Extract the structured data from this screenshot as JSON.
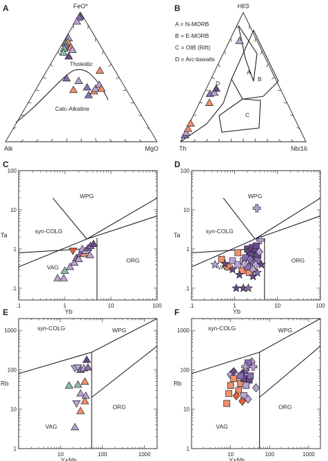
{
  "colors": {
    "dark_purple": "#6a4a8c",
    "purple": "#8a6fb0",
    "lavender": "#b9a3d4",
    "salmon": "#ef8f6e",
    "orange_red": "#e5603a",
    "teal": "#8cbcae",
    "outline": "#231f20"
  },
  "chart_data": [
    {
      "panel": "A",
      "type": "scatter",
      "subtype": "ternary",
      "apices": {
        "top": "FeO*",
        "left": "Alk",
        "right": "MgO"
      },
      "fields": [
        "Tholeiitic",
        "Calc-Alkaline"
      ],
      "points": [
        {
          "a": 0.97,
          "b": 0.02,
          "c": 0.01,
          "marker": "triangle",
          "color": "purple"
        },
        {
          "a": 0.96,
          "b": 0.03,
          "c": 0.01,
          "marker": "triangle",
          "color": "purple"
        },
        {
          "a": 0.93,
          "b": 0.06,
          "c": 0.01,
          "marker": "triangle",
          "color": "lavender"
        },
        {
          "a": 0.8,
          "b": 0.18,
          "c": 0.02,
          "marker": "triangle",
          "color": "lavender"
        },
        {
          "a": 0.77,
          "b": 0.2,
          "c": 0.03,
          "marker": "triangle",
          "color": "salmon"
        },
        {
          "a": 0.76,
          "b": 0.22,
          "c": 0.02,
          "marker": "triangle",
          "color": "teal"
        },
        {
          "a": 0.74,
          "b": 0.23,
          "c": 0.03,
          "marker": "triangle",
          "color": "purple"
        },
        {
          "a": 0.72,
          "b": 0.25,
          "c": 0.03,
          "marker": "triangle",
          "color": "teal"
        },
        {
          "a": 0.73,
          "b": 0.2,
          "c": 0.07,
          "marker": "triangle",
          "color": "salmon"
        },
        {
          "a": 0.71,
          "b": 0.2,
          "c": 0.09,
          "marker": "triangle",
          "color": "lavender"
        },
        {
          "a": 0.69,
          "b": 0.27,
          "c": 0.04,
          "marker": "triangle",
          "color": "teal"
        },
        {
          "a": 0.66,
          "b": 0.25,
          "c": 0.09,
          "marker": "triangle",
          "color": "dark_purple"
        },
        {
          "a": 0.49,
          "b": 0.35,
          "c": 0.16,
          "marker": "triangle",
          "color": "purple"
        },
        {
          "a": 0.47,
          "b": 0.28,
          "c": 0.25,
          "marker": "triangle",
          "color": "lavender"
        },
        {
          "a": 0.4,
          "b": 0.35,
          "c": 0.25,
          "marker": "triangle",
          "color": "salmon"
        },
        {
          "a": 0.42,
          "b": 0.25,
          "c": 0.33,
          "marker": "triangle",
          "color": "purple"
        },
        {
          "a": 0.36,
          "b": 0.27,
          "c": 0.37,
          "marker": "triangle",
          "color": "purple"
        },
        {
          "a": 0.39,
          "b": 0.22,
          "c": 0.39,
          "marker": "triangle",
          "color": "salmon"
        },
        {
          "a": 0.41,
          "b": 0.2,
          "c": 0.39,
          "marker": "triangle",
          "color": "lavender"
        },
        {
          "a": 0.44,
          "b": 0.16,
          "c": 0.4,
          "marker": "triangle",
          "color": "lavender"
        },
        {
          "a": 0.41,
          "b": 0.16,
          "c": 0.43,
          "marker": "triangle",
          "color": "salmon"
        },
        {
          "a": 0.55,
          "b": 0.1,
          "c": 0.35,
          "marker": "triangle",
          "color": "salmon"
        }
      ]
    },
    {
      "panel": "B",
      "type": "scatter",
      "subtype": "ternary",
      "apices": {
        "top": "Hf/3",
        "left": "Th",
        "right": "Nb/16"
      },
      "legend": [
        "A = N-MORB",
        "B = E-MORB",
        "C = OIB (Rift)",
        "D = Arc-basalts"
      ],
      "fields": [
        "A",
        "B",
        "C",
        "D"
      ],
      "points": [
        {
          "a": 0.05,
          "b": 0.94,
          "c": 0.01,
          "marker": "triangle",
          "color": "purple"
        },
        {
          "a": 0.07,
          "b": 0.92,
          "c": 0.01,
          "marker": "triangle",
          "color": "lavender"
        },
        {
          "a": 0.1,
          "b": 0.89,
          "c": 0.01,
          "marker": "triangle",
          "color": "salmon"
        },
        {
          "a": 0.14,
          "b": 0.85,
          "c": 0.01,
          "marker": "triangle",
          "color": "salmon"
        },
        {
          "a": 0.3,
          "b": 0.62,
          "c": 0.08,
          "marker": "triangle",
          "color": "salmon"
        },
        {
          "a": 0.37,
          "b": 0.58,
          "c": 0.05,
          "marker": "triangle",
          "color": "purple"
        },
        {
          "a": 0.38,
          "b": 0.54,
          "c": 0.08,
          "marker": "triangle",
          "color": "lavender"
        },
        {
          "a": 0.41,
          "b": 0.51,
          "c": 0.08,
          "marker": "triangle",
          "color": "dark_purple"
        },
        {
          "a": 0.78,
          "b": 0.14,
          "c": 0.08,
          "marker": "triangle",
          "color": "lavender"
        }
      ]
    },
    {
      "panel": "C",
      "type": "scatter",
      "xlabel": "Yb",
      "ylabel": "Ta",
      "xscale": "log",
      "yscale": "log",
      "xlim": [
        0.1,
        100
      ],
      "ylim": [
        0.05,
        100
      ],
      "xticks": [
        ".1",
        "1",
        "10",
        "100"
      ],
      "yticks": [
        ".1",
        "1",
        "10",
        "100"
      ],
      "fields": [
        "WPG",
        "syn-COLG",
        "VAG",
        "ORG"
      ],
      "points": [
        {
          "x": 0.7,
          "y": 0.18,
          "marker": "triangle",
          "color": "lavender"
        },
        {
          "x": 0.95,
          "y": 0.18,
          "marker": "triangle",
          "color": "lavender"
        },
        {
          "x": 1.0,
          "y": 0.28,
          "marker": "triangle",
          "color": "teal"
        },
        {
          "x": 1.3,
          "y": 0.35,
          "marker": "triangle",
          "color": "lavender"
        },
        {
          "x": 1.6,
          "y": 0.45,
          "marker": "triangle",
          "color": "lavender"
        },
        {
          "x": 1.8,
          "y": 0.6,
          "marker": "triangle",
          "color": "purple"
        },
        {
          "x": 2.0,
          "y": 0.55,
          "marker": "triangle",
          "color": "lavender"
        },
        {
          "x": 1.5,
          "y": 0.9,
          "marker": "down-triangle",
          "color": "orange_red"
        },
        {
          "x": 2.2,
          "y": 0.75,
          "marker": "triangle",
          "color": "purple"
        },
        {
          "x": 2.4,
          "y": 1.0,
          "marker": "triangle",
          "color": "lavender"
        },
        {
          "x": 2.6,
          "y": 0.75,
          "marker": "triangle",
          "color": "salmon"
        },
        {
          "x": 2.8,
          "y": 0.9,
          "marker": "triangle",
          "color": "lavender"
        },
        {
          "x": 3.2,
          "y": 1.05,
          "marker": "triangle",
          "color": "purple"
        },
        {
          "x": 3.5,
          "y": 0.7,
          "marker": "triangle",
          "color": "lavender"
        },
        {
          "x": 3.6,
          "y": 1.2,
          "marker": "triangle",
          "color": "purple"
        },
        {
          "x": 4.2,
          "y": 1.35,
          "marker": "triangle",
          "color": "dark_purple"
        }
      ]
    },
    {
      "panel": "D",
      "type": "scatter",
      "xlabel": "Yb",
      "ylabel": "Ta",
      "xscale": "log",
      "yscale": "log",
      "xlim": [
        0.1,
        100
      ],
      "ylim": [
        0.05,
        100
      ],
      "xticks": [
        ".1",
        "1",
        "10",
        "100"
      ],
      "yticks": [
        ".1",
        "1",
        "10",
        "100"
      ],
      "fields": [
        "WPG",
        "syn-COLG",
        "VAG",
        "ORG"
      ],
      "points": [
        {
          "x": 3.3,
          "y": 11.0,
          "marker": "cross",
          "color": "lavender"
        },
        {
          "x": 4.0,
          "y": 1.7,
          "marker": "cross",
          "color": "lavender"
        },
        {
          "x": 1.2,
          "y": 0.8,
          "marker": "square",
          "color": "salmon"
        },
        {
          "x": 0.5,
          "y": 0.55,
          "marker": "square",
          "color": "salmon"
        },
        {
          "x": 0.7,
          "y": 0.35,
          "marker": "square",
          "color": "salmon"
        },
        {
          "x": 1.5,
          "y": 0.28,
          "marker": "square",
          "color": "salmon"
        },
        {
          "x": 2.2,
          "y": 0.25,
          "marker": "square",
          "color": "salmon"
        },
        {
          "x": 0.9,
          "y": 0.5,
          "marker": "square",
          "color": "lavender"
        },
        {
          "x": 1.2,
          "y": 0.4,
          "marker": "square",
          "color": "lavender"
        },
        {
          "x": 1.6,
          "y": 0.5,
          "marker": "square",
          "color": "lavender"
        },
        {
          "x": 2.0,
          "y": 1.0,
          "marker": "square",
          "color": "dark_purple"
        },
        {
          "x": 2.2,
          "y": 0.85,
          "marker": "square",
          "color": "dark_purple"
        },
        {
          "x": 2.6,
          "y": 1.1,
          "marker": "square",
          "color": "dark_purple"
        },
        {
          "x": 3.0,
          "y": 0.9,
          "marker": "square",
          "color": "dark_purple"
        },
        {
          "x": 2.4,
          "y": 0.7,
          "marker": "square",
          "color": "dark_purple"
        },
        {
          "x": 3.2,
          "y": 1.2,
          "marker": "square",
          "color": "dark_purple"
        },
        {
          "x": 2.8,
          "y": 0.55,
          "marker": "square",
          "color": "dark_purple"
        },
        {
          "x": 3.5,
          "y": 0.7,
          "marker": "square",
          "color": "dark_purple"
        },
        {
          "x": 1.8,
          "y": 0.6,
          "marker": "square",
          "color": "purple"
        },
        {
          "x": 2.5,
          "y": 0.45,
          "marker": "square",
          "color": "purple"
        },
        {
          "x": 3.4,
          "y": 0.5,
          "marker": "square",
          "color": "purple"
        },
        {
          "x": 2.0,
          "y": 0.35,
          "marker": "square",
          "color": "purple"
        },
        {
          "x": 2.7,
          "y": 0.3,
          "marker": "diamond",
          "color": "lavender"
        },
        {
          "x": 3.1,
          "y": 0.4,
          "marker": "diamond",
          "color": "lavender"
        },
        {
          "x": 1.7,
          "y": 0.42,
          "marker": "diamond",
          "color": "lavender"
        },
        {
          "x": 3.8,
          "y": 0.85,
          "marker": "diamond",
          "color": "lavender"
        },
        {
          "x": 2.3,
          "y": 0.55,
          "marker": "diamond",
          "color": "purple"
        },
        {
          "x": 0.35,
          "y": 0.4,
          "marker": "star",
          "color": "lavender"
        },
        {
          "x": 0.6,
          "y": 0.42,
          "marker": "star",
          "color": "dark_purple"
        },
        {
          "x": 0.9,
          "y": 0.3,
          "marker": "star",
          "color": "dark_purple"
        },
        {
          "x": 1.3,
          "y": 0.22,
          "marker": "star",
          "color": "dark_purple"
        },
        {
          "x": 1.1,
          "y": 0.1,
          "marker": "star",
          "color": "dark_purple"
        },
        {
          "x": 1.6,
          "y": 0.1,
          "marker": "star",
          "color": "dark_purple"
        },
        {
          "x": 2.1,
          "y": 0.1,
          "marker": "star",
          "color": "purple"
        },
        {
          "x": 2.7,
          "y": 0.2,
          "marker": "star",
          "color": "dark_purple"
        },
        {
          "x": 3.4,
          "y": 0.25,
          "marker": "star",
          "color": "purple"
        },
        {
          "x": 4.2,
          "y": 0.4,
          "marker": "star",
          "color": "dark_purple"
        }
      ]
    },
    {
      "panel": "E",
      "type": "scatter",
      "xlabel": "Y+Nb",
      "ylabel": "Rb",
      "xscale": "log",
      "yscale": "log",
      "xlim": [
        1,
        2000
      ],
      "ylim": [
        1,
        2000
      ],
      "xticks": [
        "10",
        "100",
        "1000"
      ],
      "yticks": [
        "1",
        "10",
        "100",
        "1000"
      ],
      "fields": [
        "syn-COLG",
        "WPG",
        "VAG",
        "ORG"
      ],
      "points": [
        {
          "x": 22,
          "y": 110,
          "marker": "down-triangle",
          "color": "lavender"
        },
        {
          "x": 26,
          "y": 115,
          "marker": "down-triangle",
          "color": "lavender"
        },
        {
          "x": 30,
          "y": 100,
          "marker": "triangle",
          "color": "purple"
        },
        {
          "x": 36,
          "y": 110,
          "marker": "triangle",
          "color": "lavender"
        },
        {
          "x": 45,
          "y": 115,
          "marker": "triangle",
          "color": "purple"
        },
        {
          "x": 42,
          "y": 180,
          "marker": "triangle",
          "color": "dark_purple"
        },
        {
          "x": 38,
          "y": 50,
          "marker": "triangle",
          "color": "salmon"
        },
        {
          "x": 16,
          "y": 40,
          "marker": "triangle",
          "color": "teal"
        },
        {
          "x": 26,
          "y": 42,
          "marker": "triangle",
          "color": "teal"
        },
        {
          "x": 30,
          "y": 25,
          "marker": "triangle",
          "color": "lavender"
        },
        {
          "x": 40,
          "y": 22,
          "marker": "triangle",
          "color": "lavender"
        },
        {
          "x": 38,
          "y": 16,
          "marker": "triangle",
          "color": "salmon"
        },
        {
          "x": 24,
          "y": 14,
          "marker": "down-triangle",
          "color": "lavender"
        },
        {
          "x": 30,
          "y": 9,
          "marker": "triangle",
          "color": "salmon"
        },
        {
          "x": 22,
          "y": 3.5,
          "marker": "triangle",
          "color": "lavender"
        }
      ]
    },
    {
      "panel": "F",
      "type": "scatter",
      "xlabel": "Y+Nb",
      "ylabel": "Rb",
      "xscale": "log",
      "yscale": "log",
      "xlim": [
        1,
        2000
      ],
      "ylim": [
        1,
        2000
      ],
      "xticks": [
        "10",
        "100",
        "1000"
      ],
      "yticks": [
        "1",
        "10",
        "100",
        "1000"
      ],
      "fields": [
        "syn-COLG",
        "WPG",
        "VAG",
        "ORG"
      ],
      "points": [
        {
          "x": 10,
          "y": 75,
          "marker": "diamond",
          "color": "lavender"
        },
        {
          "x": 12,
          "y": 90,
          "marker": "diamond",
          "color": "dark_purple"
        },
        {
          "x": 20,
          "y": 80,
          "marker": "diamond",
          "color": "dark_purple"
        },
        {
          "x": 25,
          "y": 100,
          "marker": "diamond",
          "color": "purple"
        },
        {
          "x": 35,
          "y": 160,
          "marker": "diamond",
          "color": "lavender"
        },
        {
          "x": 28,
          "y": 150,
          "marker": "square",
          "color": "purple"
        },
        {
          "x": 24,
          "y": 120,
          "marker": "cross",
          "color": "lavender"
        },
        {
          "x": 38,
          "y": 120,
          "marker": "cross",
          "color": "lavender"
        },
        {
          "x": 12,
          "y": 60,
          "marker": "square",
          "color": "salmon"
        },
        {
          "x": 10,
          "y": 40,
          "marker": "square",
          "color": "salmon"
        },
        {
          "x": 18,
          "y": 45,
          "marker": "square",
          "color": "salmon"
        },
        {
          "x": 9,
          "y": 25,
          "marker": "square",
          "color": "salmon"
        },
        {
          "x": 16,
          "y": 30,
          "marker": "square",
          "color": "salmon"
        },
        {
          "x": 22,
          "y": 60,
          "marker": "square",
          "color": "dark_purple"
        },
        {
          "x": 18,
          "y": 70,
          "marker": "square",
          "color": "purple"
        },
        {
          "x": 30,
          "y": 55,
          "marker": "square",
          "color": "dark_purple"
        },
        {
          "x": 25,
          "y": 40,
          "marker": "square",
          "color": "lavender"
        },
        {
          "x": 32,
          "y": 70,
          "marker": "square",
          "color": "purple"
        },
        {
          "x": 14,
          "y": 22,
          "marker": "diamond",
          "color": "orange_red"
        },
        {
          "x": 22,
          "y": 22,
          "marker": "square",
          "color": "lavender"
        },
        {
          "x": 28,
          "y": 18,
          "marker": "diamond",
          "color": "lavender"
        },
        {
          "x": 8,
          "y": 14,
          "marker": "square",
          "color": "salmon"
        },
        {
          "x": 20,
          "y": 16,
          "marker": "diamond",
          "color": "orange_red"
        },
        {
          "x": 45,
          "y": 35,
          "marker": "diamond",
          "color": "lavender"
        }
      ]
    }
  ]
}
